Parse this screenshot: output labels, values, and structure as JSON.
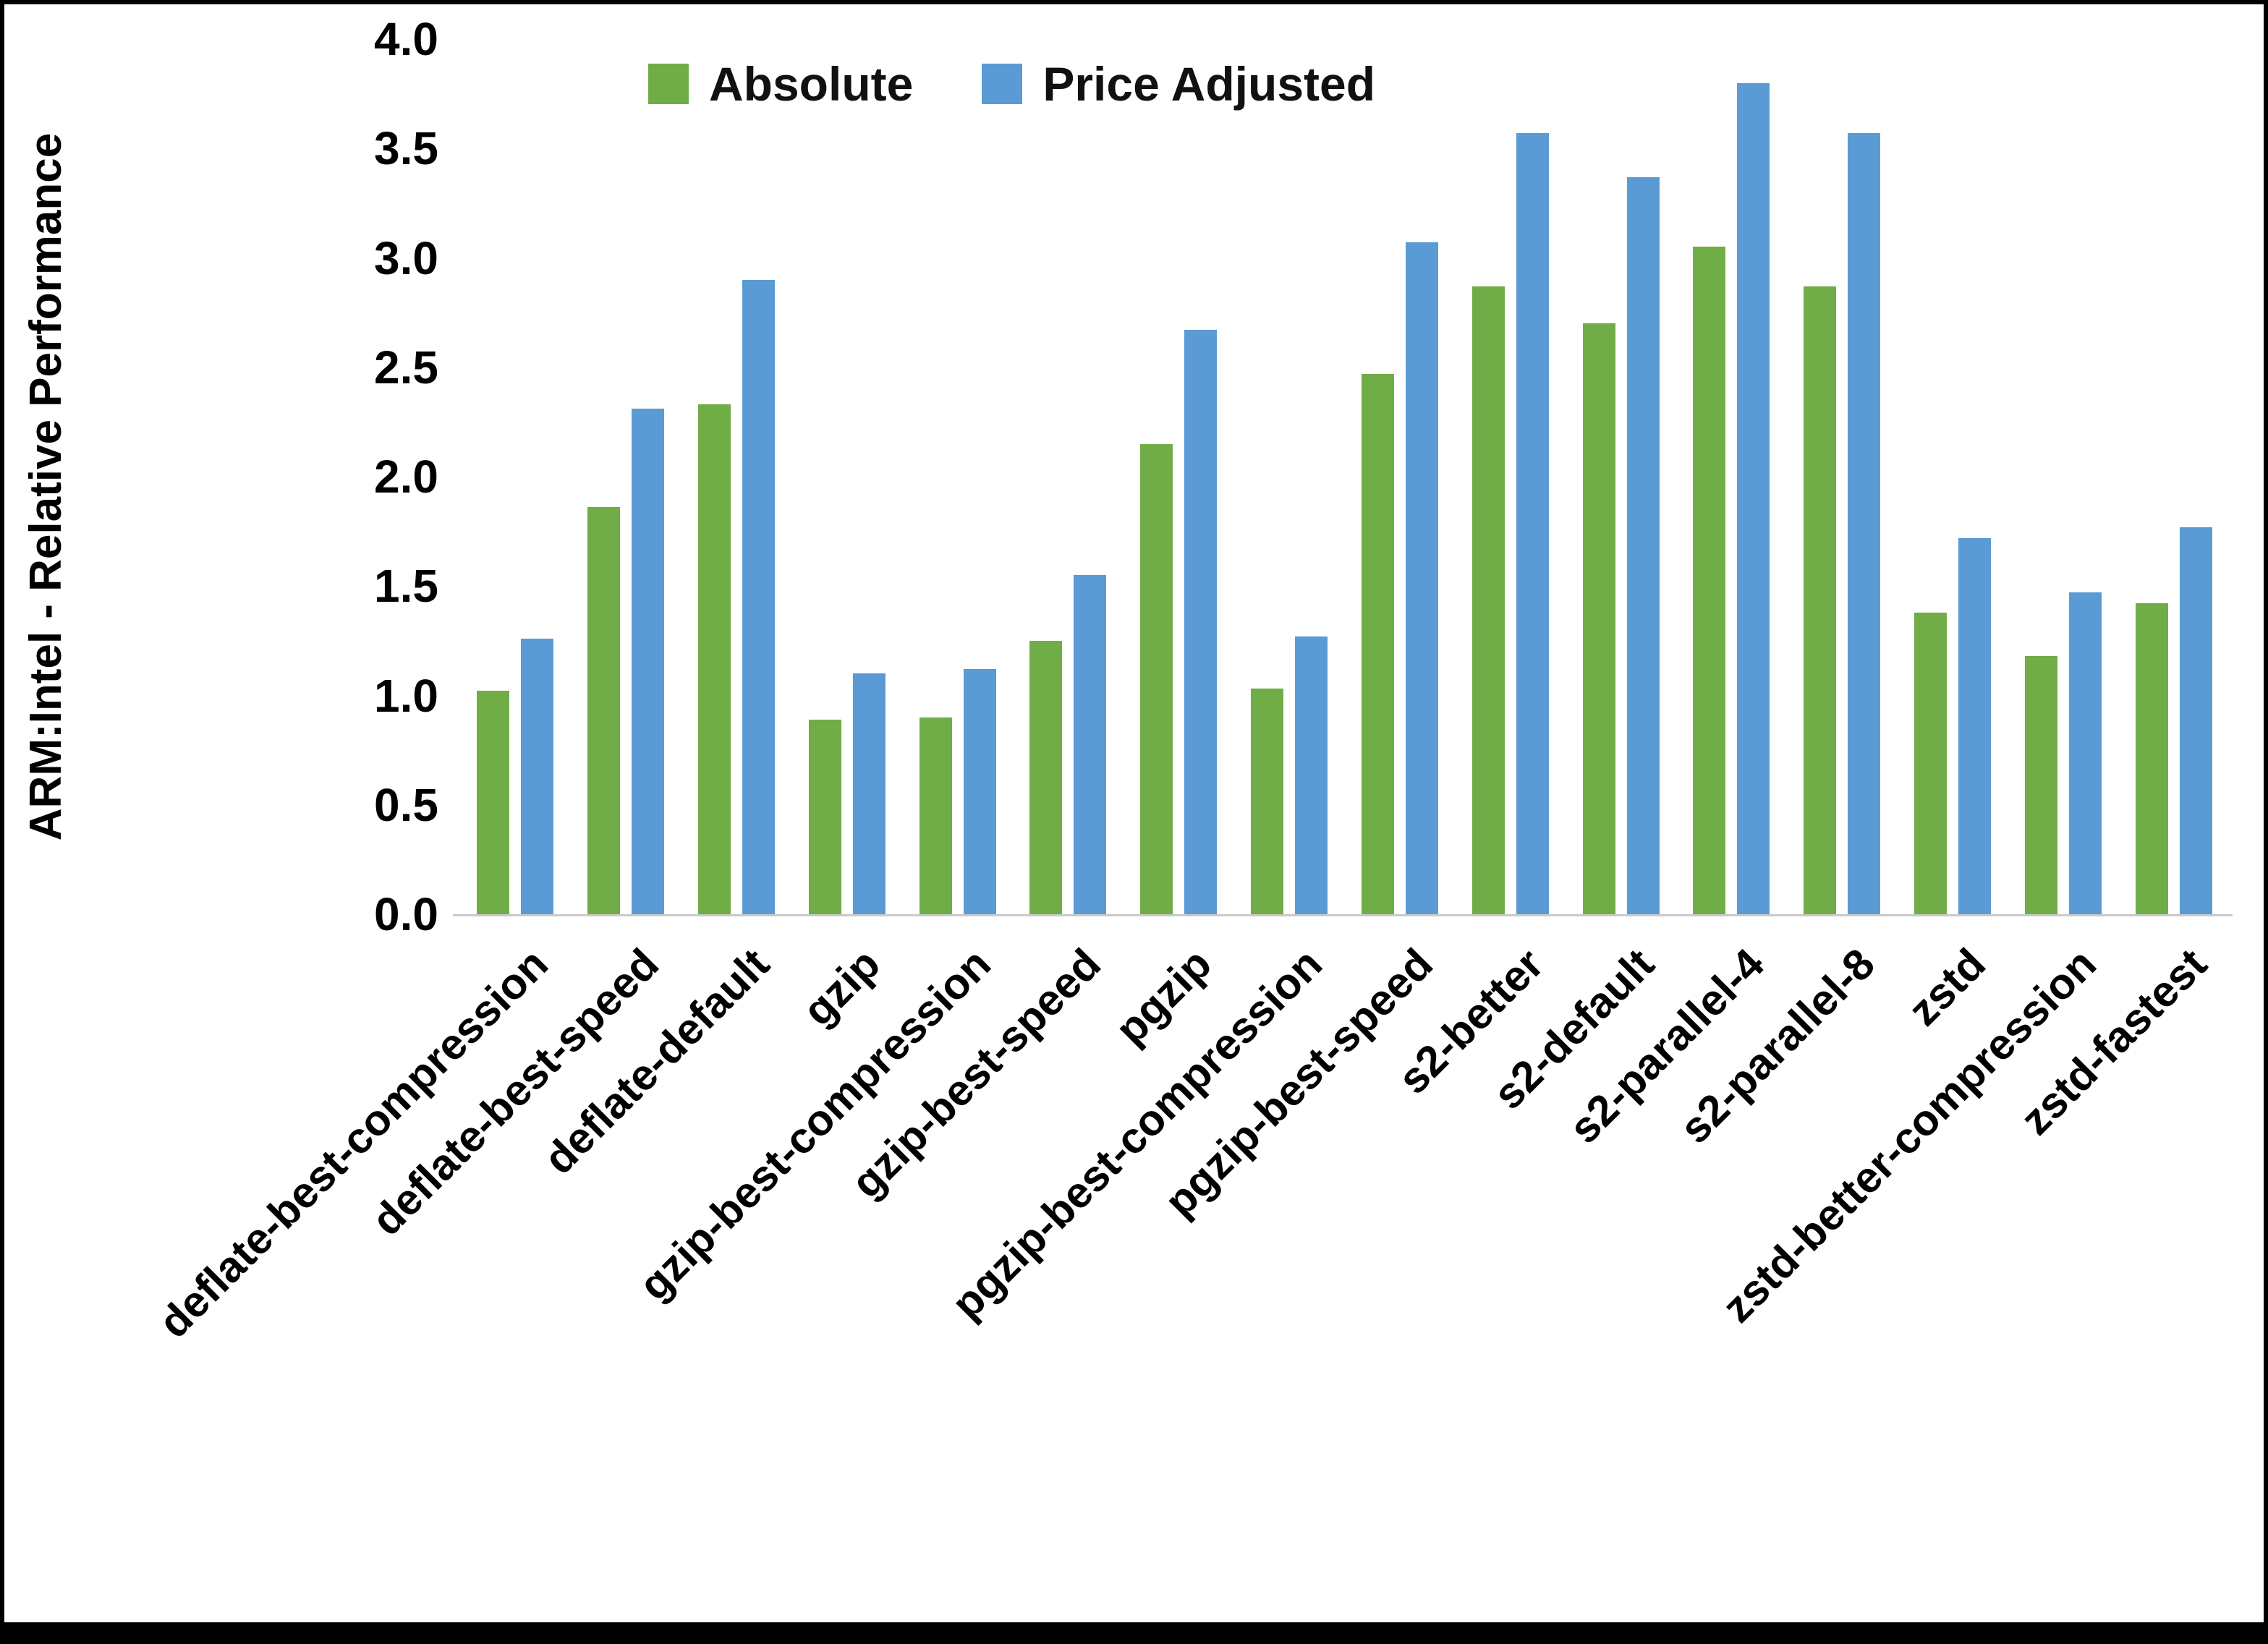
{
  "chart_data": {
    "type": "bar",
    "title": "",
    "xlabel": "",
    "ylabel": "ARM:Intel - Relative Performance",
    "ylim": [
      0.0,
      4.0
    ],
    "ytick_step": 0.5,
    "grid": false,
    "legend_position": "top-center",
    "categories": [
      "deflate-best-compression",
      "deflate-best-speed",
      "deflate-default",
      "gzip",
      "gzip-best-compression",
      "gzip-best-speed",
      "pgzip",
      "pgzip-best-compression",
      "pgzip-best-speed",
      "s2-better",
      "s2-default",
      "s2-parallel-4",
      "s2-parallel-8",
      "zstd",
      "zstd-better-compression",
      "zstd-fastest"
    ],
    "series": [
      {
        "name": "Absolute",
        "color": "#70AD47",
        "values": [
          1.02,
          1.86,
          2.33,
          0.89,
          0.9,
          1.25,
          2.15,
          1.03,
          2.47,
          2.87,
          2.7,
          3.05,
          2.87,
          1.38,
          1.18,
          1.42
        ]
      },
      {
        "name": "Price Adjusted",
        "color": "#5B9BD5",
        "values": [
          1.26,
          2.31,
          2.9,
          1.1,
          1.12,
          1.55,
          2.67,
          1.27,
          3.07,
          3.57,
          3.37,
          3.8,
          3.57,
          1.72,
          1.47,
          1.77
        ]
      }
    ]
  }
}
